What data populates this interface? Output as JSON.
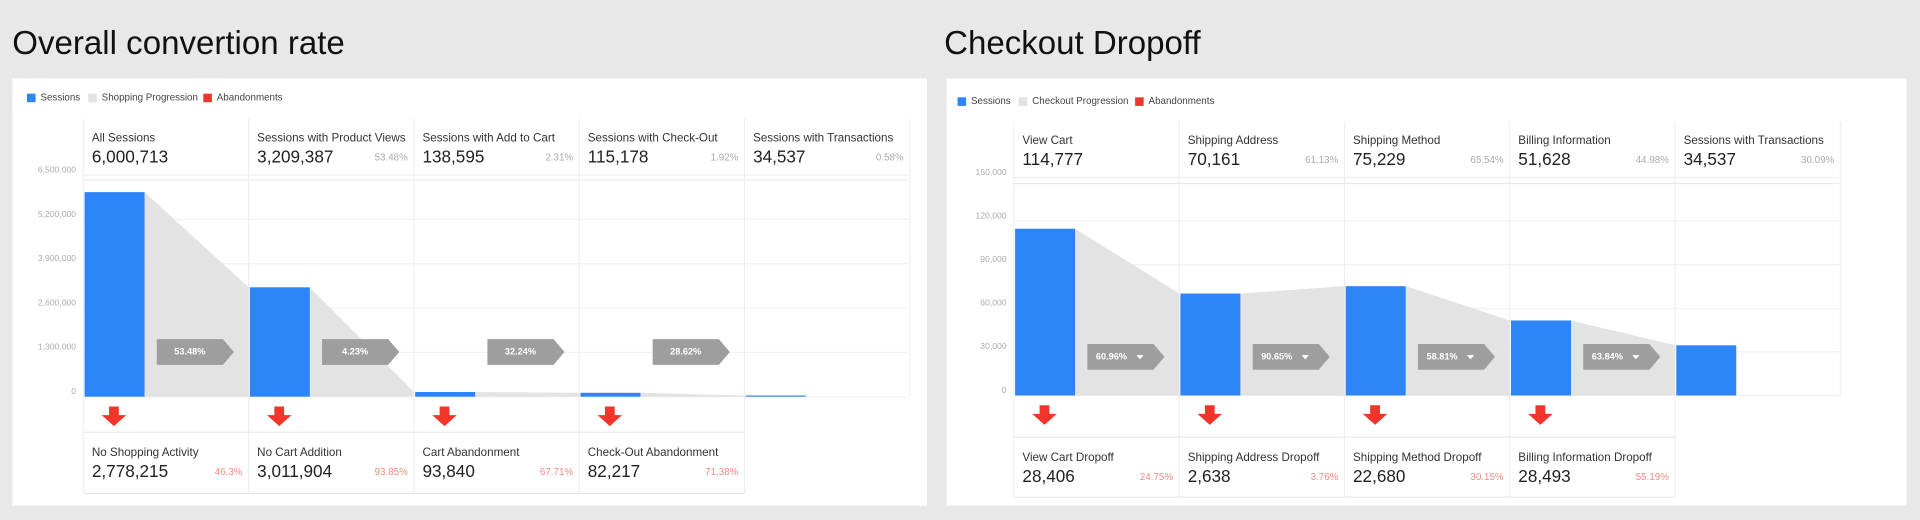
{
  "chart_data": [
    {
      "type": "funnel",
      "title": "Overall convertion rate",
      "legend": [
        {
          "name": "Sessions",
          "color": "#2d85f7"
        },
        {
          "name": "Shopping Progression",
          "color": "#e3e3e3"
        },
        {
          "name": "Abandonments",
          "color": "#f2352b"
        }
      ],
      "ylim": [
        0,
        6500000
      ],
      "yticks": [
        0,
        {
          "value": 1300000,
          "label": "1,300,000"
        },
        {
          "value": 2600000,
          "label": "2,600,000"
        },
        {
          "value": 3900000,
          "label": "3,900,000"
        },
        {
          "value": 5200000,
          "label": "5,200,000"
        },
        {
          "value": 6500000,
          "label": "6,500,000"
        }
      ],
      "categories": [
        "All Sessions",
        "Sessions with Product Views",
        "Sessions with Add to Cart",
        "Sessions with Check-Out",
        "Sessions with Transactions"
      ],
      "values": [
        6000713,
        3209387,
        138595,
        115178,
        34537
      ],
      "value_labels": [
        "6,000,713",
        "3,209,387",
        "138,595",
        "115,178",
        "34,537"
      ],
      "rates": [
        null,
        53.48,
        2.31,
        1.92,
        0.58
      ],
      "rate_labels": [
        null,
        "53.48%",
        "2.31%",
        "1.92%",
        "0.58%"
      ],
      "progression": [
        53.48,
        4.23,
        32.24,
        28.62
      ],
      "progression_labels": [
        "53.48%",
        "4.23%",
        "32.24%",
        "28.62%"
      ],
      "abandonments": {
        "categories": [
          "No Shopping Activity",
          "No Cart Addition",
          "Cart Abandonment",
          "Check-Out Abandonment"
        ],
        "values": [
          2778215,
          3011904,
          93840,
          82217
        ],
        "value_labels": [
          "2,778,215",
          "3,011,904",
          "93,840",
          "82,217"
        ],
        "rates": [
          46.3,
          93.85,
          67.71,
          71.38
        ],
        "rate_labels": [
          "46.3%",
          "93.85%",
          "67.71%",
          "71.38%"
        ]
      }
    },
    {
      "type": "funnel",
      "title": "Checkout Dropoff",
      "legend": [
        {
          "name": "Sessions",
          "color": "#2d85f7"
        },
        {
          "name": "Checkout Progression",
          "color": "#e3e3e3"
        },
        {
          "name": "Abandonments",
          "color": "#f2352b"
        }
      ],
      "ylim": [
        0,
        150000
      ],
      "yticks": [
        0,
        {
          "value": 30000,
          "label": "30,000"
        },
        {
          "value": 60000,
          "label": "60,000"
        },
        {
          "value": 90000,
          "label": "90,000"
        },
        {
          "value": 120000,
          "label": "120,000"
        },
        {
          "value": 150000,
          "label": "150,000"
        }
      ],
      "categories": [
        "View Cart",
        "Shipping Address",
        "Shipping Method",
        "Billing Information",
        "Sessions with Transactions"
      ],
      "values": [
        114777,
        70161,
        75229,
        51628,
        34537
      ],
      "value_labels": [
        "114,777",
        "70,161",
        "75,229",
        "51,628",
        "34,537"
      ],
      "rates": [
        null,
        61.13,
        65.54,
        44.98,
        30.09
      ],
      "rate_labels": [
        null,
        "61.13%",
        "65.54%",
        "44.98%",
        "30.09%"
      ],
      "progression": [
        60.96,
        90.65,
        58.81,
        63.84
      ],
      "progression_labels": [
        "60.96%",
        "90.65%",
        "58.81%",
        "63.84%"
      ],
      "abandonments": {
        "categories": [
          "View Cart Dropoff",
          "Shipping Address Dropoff",
          "Shipping Method Dropoff",
          "Billing Information Dropoff"
        ],
        "values": [
          28406,
          2638,
          22680,
          28493
        ],
        "value_labels": [
          "28,406",
          "2,638",
          "22,680",
          "28,493"
        ],
        "rates": [
          24.75,
          3.76,
          30.15,
          55.19
        ],
        "rate_labels": [
          "24.75%",
          "3.76%",
          "30.15%",
          "55.19%"
        ]
      }
    }
  ]
}
